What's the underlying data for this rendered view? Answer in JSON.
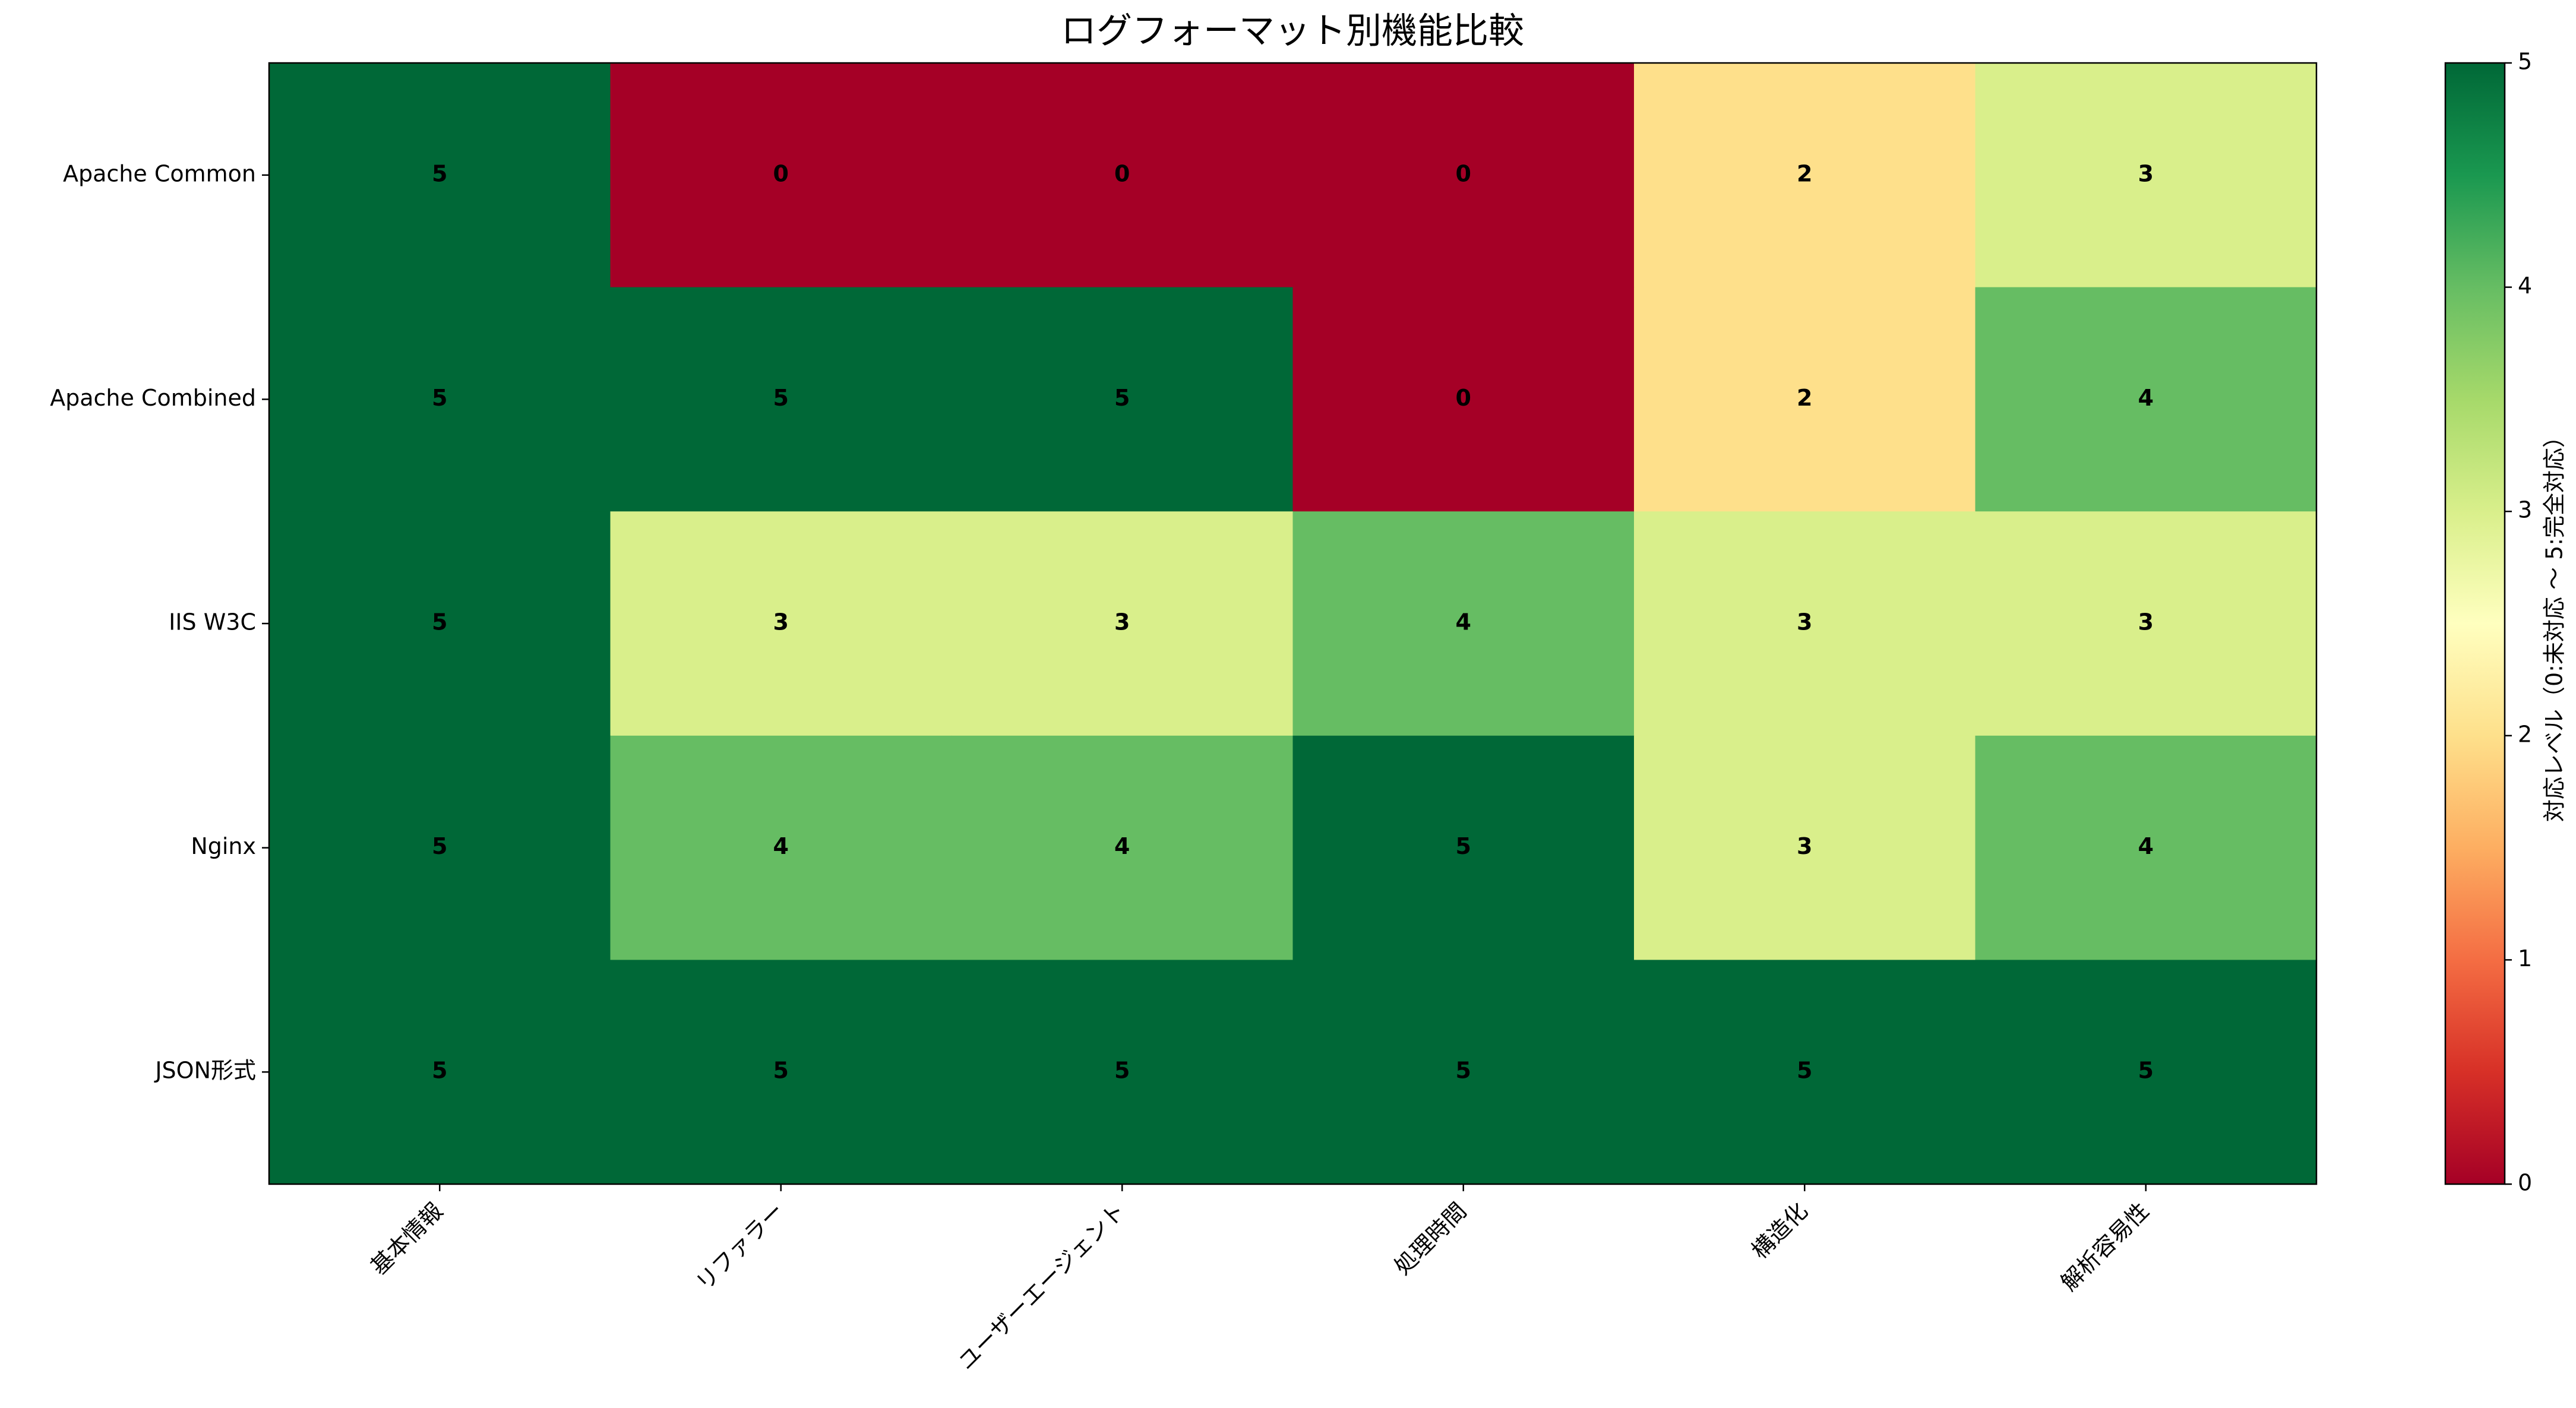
{
  "chart_data": {
    "type": "heatmap",
    "title": "ログフォーマット別機能比較",
    "x": [
      "基本情報",
      "リファラー",
      "ユーザーエージェント",
      "処理時間",
      "構造化",
      "解析容易性"
    ],
    "y": [
      "Apache Common",
      "Apache Combined",
      "IIS W3C",
      "Nginx",
      "JSON形式"
    ],
    "values": [
      [
        5,
        0,
        0,
        0,
        2,
        3
      ],
      [
        5,
        5,
        5,
        0,
        2,
        4
      ],
      [
        5,
        3,
        3,
        4,
        3,
        3
      ],
      [
        5,
        4,
        4,
        5,
        3,
        4
      ],
      [
        5,
        5,
        5,
        5,
        5,
        5
      ]
    ],
    "colormap": "RdYlGn",
    "zlim": [
      0,
      5
    ],
    "colorbar_ticks": [
      0,
      1,
      2,
      3,
      4,
      5
    ],
    "colorbar_label": "対応レベル（0:未対応 ～ 5:完全対応）"
  }
}
